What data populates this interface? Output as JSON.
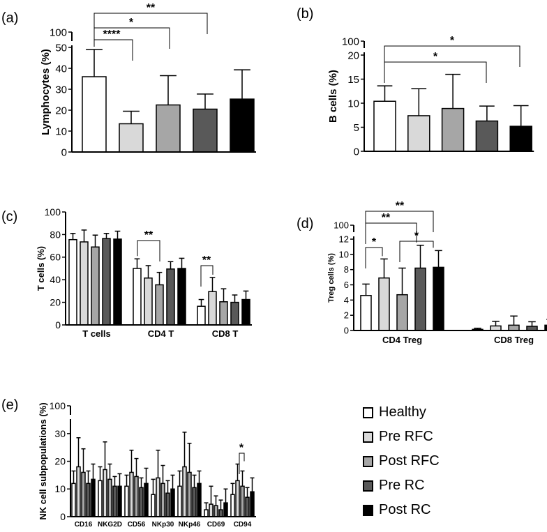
{
  "colors": {
    "Healthy": "#ffffff",
    "Pre RFC": "#d9d9d9",
    "Post RFC": "#a6a6a6",
    "Pre RC": "#595959",
    "Post RC": "#000000"
  },
  "legend": {
    "items": [
      "Healthy",
      "Pre RFC",
      "Post RFC",
      "Pre RC",
      "Post RC"
    ]
  },
  "chart_data": [
    {
      "panel": "(a)",
      "type": "bar",
      "ylabel": "Lymphocytes (%)",
      "ylim": [
        0,
        100
      ],
      "axis_break": [
        50,
        100
      ],
      "ticks": [
        "0",
        "10",
        "20",
        "30",
        "40",
        "50",
        "100"
      ],
      "groups": [
        {
          "label": "",
          "values": [
            36,
            13.5,
            22.5,
            20.5,
            25.3
          ],
          "errors": [
            13,
            6,
            14,
            7.2,
            14
          ]
        }
      ],
      "annotations": [
        {
          "text": "****",
          "from": 0,
          "to": 1
        },
        {
          "text": "*",
          "from": 0,
          "to": 2
        },
        {
          "text": "**",
          "from": 0,
          "to": 3
        }
      ]
    },
    {
      "panel": "(b)",
      "type": "bar",
      "ylabel": "B cells (%)",
      "ylim": [
        0,
        100
      ],
      "axis_break": [
        20,
        100
      ],
      "ticks": [
        "0",
        "5",
        "10",
        "15",
        "20",
        "100"
      ],
      "groups": [
        {
          "label": "",
          "values": [
            10.4,
            7.4,
            8.9,
            6.3,
            5.2
          ],
          "errors": [
            3.2,
            5.6,
            7.1,
            3.1,
            4.3
          ]
        }
      ],
      "annotations": [
        {
          "text": "*",
          "from": 0,
          "to": 3
        },
        {
          "text": "*",
          "from": 0,
          "to": 4
        }
      ]
    },
    {
      "panel": "(c)",
      "type": "bar",
      "ylabel": "T cells (%)",
      "ylim": [
        0,
        100
      ],
      "ticks": [
        "0",
        "20",
        "40",
        "60",
        "80",
        "100"
      ],
      "groups": [
        {
          "label": "T cells",
          "values": [
            75.5,
            73.5,
            69,
            76.5,
            76
          ],
          "errors": [
            5.5,
            10.5,
            10.5,
            4.5,
            7
          ]
        },
        {
          "label": "CD4 T",
          "values": [
            50,
            41.5,
            35.5,
            49.5,
            50
          ],
          "errors": [
            8.5,
            11,
            11,
            6.5,
            9
          ]
        },
        {
          "label": "CD8 T",
          "values": [
            16.5,
            29.5,
            20.5,
            20,
            22.5
          ],
          "errors": [
            6,
            12.5,
            11.5,
            6.5,
            7.5
          ]
        }
      ],
      "annotations": [
        {
          "text": "**",
          "group": 1,
          "from": 0,
          "to": 2
        },
        {
          "text": "**",
          "group": 2,
          "from": 0,
          "to": 1
        }
      ]
    },
    {
      "panel": "(d)",
      "type": "bar",
      "ylabel": "Treg cells (%)",
      "ylim": [
        0,
        100
      ],
      "axis_break": [
        12,
        100
      ],
      "ticks": [
        "0",
        "2",
        "4",
        "6",
        "8",
        "10",
        "12",
        "100"
      ],
      "groups": [
        {
          "label": "CD4 Treg",
          "values": [
            4.6,
            6.9,
            4.7,
            8.2,
            8.3
          ],
          "errors": [
            1.5,
            2.5,
            3.5,
            3,
            2.2
          ]
        },
        {
          "label": "CD8 Treg",
          "values": [
            0.15,
            0.6,
            0.7,
            0.55,
            0.7
          ],
          "errors": [
            0.15,
            0.6,
            1.2,
            0.6,
            0.75
          ]
        }
      ],
      "annotations": [
        {
          "text": "*",
          "group": 0,
          "from": 0,
          "to": 1
        },
        {
          "text": "**",
          "group": 0,
          "from": 0,
          "to": 3
        },
        {
          "text": "**",
          "group": 0,
          "from": 0,
          "to": 4
        },
        {
          "text": "*",
          "group": 0,
          "from": 2,
          "to": 4
        }
      ]
    },
    {
      "panel": "(e)",
      "type": "bar",
      "ylabel": "NK cell subpopulations (%)",
      "ylim": [
        0,
        100
      ],
      "axis_break": [
        35,
        100
      ],
      "ticks": [
        "0",
        "10",
        "20",
        "30",
        "100"
      ],
      "groups": [
        {
          "label": "CD16",
          "values": [
            12,
            18,
            16,
            12,
            13.5
          ],
          "errors": [
            4.5,
            10.5,
            8.5,
            4.5,
            5.5
          ]
        },
        {
          "label": "NKG2D",
          "values": [
            13,
            17,
            13.5,
            11,
            11
          ],
          "errors": [
            5,
            10,
            5.5,
            3.5,
            4.5
          ]
        },
        {
          "label": "CD56",
          "values": [
            11,
            16,
            14.5,
            10.5,
            12
          ],
          "errors": [
            4,
            8,
            6.5,
            3.5,
            5.5
          ]
        },
        {
          "label": "NKp30",
          "values": [
            8,
            14,
            12,
            8.5,
            10
          ],
          "errors": [
            5.5,
            10,
            6.5,
            4.5,
            5
          ]
        },
        {
          "label": "NKp46",
          "values": [
            11,
            18,
            16,
            10.5,
            12
          ],
          "errors": [
            5.5,
            12.5,
            10.5,
            4.5,
            4.5
          ]
        },
        {
          "label": "CD69",
          "values": [
            2.5,
            4.5,
            4,
            2.5,
            5
          ],
          "errors": [
            2.5,
            6.5,
            3.5,
            3.5,
            5
          ]
        },
        {
          "label": "CD94",
          "values": [
            8,
            13,
            11,
            7,
            9
          ],
          "errors": [
            4,
            6,
            5.5,
            3.5,
            5
          ]
        }
      ],
      "annotations": [
        {
          "text": "*",
          "group": 6,
          "from": 0,
          "to": 1
        }
      ]
    }
  ]
}
